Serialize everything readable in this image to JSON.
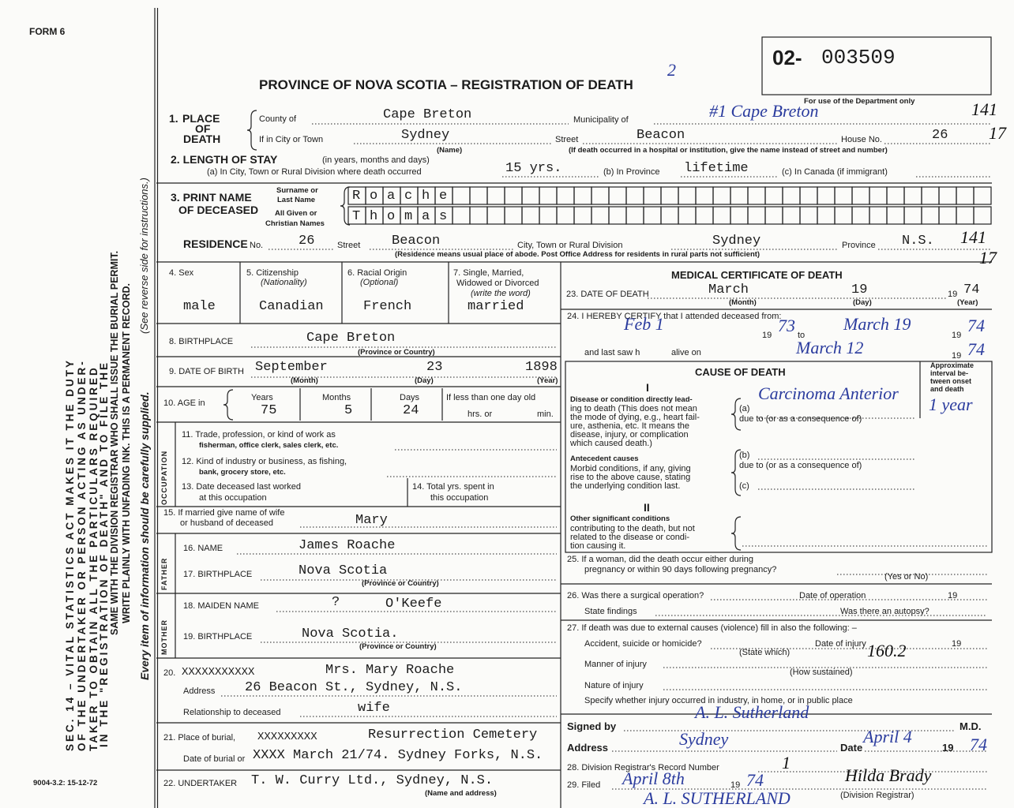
{
  "header": {
    "form": "FORM 6",
    "number_prefix": "02-",
    "number": "003509",
    "title": "PROVINCE OF NOVA SCOTIA – REGISTRATION OF DEATH",
    "title_mark": "2",
    "department_note": "For use of the Department only",
    "department_codes": [
      "141",
      "17",
      "141",
      "17"
    ]
  },
  "side": {
    "act_text": [
      "SEC. 14 – VITAL STATISTICS ACT MAKES IT THE DUTY",
      "OF THE UNDERTAKER OR PERSON ACTING AS UNDER-",
      "TAKER TO OBTAIN ALL THE PARTICULARS REQUIRED",
      "IN THE \"REGISTRATION OF DEATH\" AND TO FILE THE",
      "SAME WITH THE DIVISION REGISTRAR WHO SHALL ISSUE THE BURIAL PERMIT.",
      "WRITE PLAINLY WITH UNFADING INK. THIS IS A PERMANENT RECORD."
    ],
    "reverse_note": "(See reverse side for instructions.)",
    "care_note": "Every item of information should be carefully supplied.",
    "form_code": "9004-3.2: 15-12-72"
  },
  "place": {
    "number": "1.",
    "label": [
      "PLACE",
      "OF",
      "DEATH"
    ],
    "county_label": "County of",
    "county": "Cape Breton",
    "municipality_label": "Municipality of",
    "municipality": "#1 Cape Breton",
    "city_label": "If in City or Town",
    "city": "Sydney",
    "city_hint": "(Name)",
    "street_label": "Street",
    "street": "Beacon",
    "house_label": "House No.",
    "house": "26",
    "institution_note": "(If death occurred in a hospital or institution, give the name instead of street and number)"
  },
  "stay": {
    "label": "2. LENGTH OF STAY",
    "hint": "(in years, months and days)",
    "city_label": "(a) In City, Town or Rural Division where death occurred",
    "city": "15 yrs.",
    "province_label": "(b) In Province",
    "province": "lifetime",
    "canada_label": "(c) In Canada (if immigrant)"
  },
  "name": {
    "label": [
      "3. PRINT NAME",
      "OF DECEASED"
    ],
    "surname_label": [
      "Surname or",
      "Last Name"
    ],
    "given_label": [
      "All Given or",
      "Christian Names"
    ],
    "surname": "Roache",
    "given": "Thomas"
  },
  "residence": {
    "label": "RESIDENCE",
    "number_label": "No.",
    "number": "26",
    "street_label": "Street",
    "street": "Beacon",
    "city_label": "City, Town or Rural Division",
    "city": "Sydney",
    "province_label": "Province",
    "province": "N.S.",
    "note": "(Residence means usual place of abode. Post Office Address for residents in rural parts not sufficient)"
  },
  "personal": {
    "sex_label": "4. Sex",
    "sex": "male",
    "citizenship_label": [
      "5. Citizenship",
      "(Nationality)"
    ],
    "citizenship": "Canadian",
    "origin_label": [
      "6. Racial Origin",
      "(Optional)"
    ],
    "origin": "French",
    "marital_label": [
      "7. Single, Married,",
      "Widowed or Divorced",
      "(write the word)"
    ],
    "marital": "married"
  },
  "birth": {
    "place_label": "8. BIRTHPLACE",
    "place": "Cape Breton",
    "place_hint": "(Province or Country)",
    "date_label": "9. DATE OF BIRTH",
    "month": "September",
    "day": "23",
    "year": "1898",
    "month_hint": "(Month)",
    "day_hint": "(Day)",
    "year_hint": "(Year)"
  },
  "age": {
    "label": "10. AGE in",
    "years_label": "Years",
    "years": "75",
    "months_label": "Months",
    "months": "5",
    "days_label": "Days",
    "days": "24",
    "under_day_label": "If less than one day old",
    "hours_label": "hrs. or",
    "minutes_label": "min."
  },
  "occupation": {
    "section": "OCCUPATION",
    "trade_label": [
      "11. Trade, profession, or kind of work as",
      "fisherman, office clerk, sales clerk, etc."
    ],
    "industry_label": [
      "12. Kind of industry or business, as fishing,",
      "bank, grocery store, etc."
    ],
    "last_worked_label": [
      "13. Date deceased last worked",
      "at this occupation"
    ],
    "total_years_label": [
      "14. Total yrs. spent in",
      "this occupation"
    ]
  },
  "spouse": {
    "label": [
      "15. If married give name of wife",
      "or husband of deceased"
    ],
    "name": "Mary"
  },
  "father": {
    "section": "FATHER",
    "name_label": "16. NAME",
    "name": "James Roache",
    "birthplace_label": "17. BIRTHPLACE",
    "birthplace": "Nova Scotia",
    "birthplace_hint": "(Province or Country)"
  },
  "mother": {
    "section": "MOTHER",
    "maiden_label": "18. MAIDEN NAME",
    "maiden_query": "?",
    "maiden": "O'Keefe",
    "birthplace_label": "19. BIRTHPLACE",
    "birthplace": "Nova Scotia.",
    "birthplace_hint": "(Province or Country)"
  },
  "informant": {
    "number": "20.",
    "struck_label": "XXXXXXXXXXX",
    "name": "Mrs. Mary Roache",
    "address_label": "Address",
    "address": "26 Beacon St., Sydney, N.S.",
    "relationship_label": "Relationship to deceased",
    "relationship": "wife"
  },
  "burial": {
    "place_label": "21. Place of burial,",
    "struck_place": "XXXXXXXXX",
    "place": "Resurrection Cemetery",
    "date_label": "Date of burial or",
    "date": "XXXX March 21/74. Sydney Forks, N.S."
  },
  "undertaker": {
    "label": "22. UNDERTAKER",
    "name": "T. W. Curry Ltd., Sydney, N.S.",
    "hint": "(Name and address)"
  },
  "medical": {
    "title": "MEDICAL CERTIFICATE OF DEATH",
    "death_label": "23. DATE OF DEATH",
    "death_month": "March",
    "death_day": "19",
    "century": "19",
    "death_year": "74",
    "month_hint": "(Month)",
    "day_hint": "(Day)",
    "year_hint": "(Year)",
    "certify_label": "24. I HEREBY CERTIFY that I attended deceased from:",
    "from_date": "Feb 1",
    "from_century": "19",
    "from_year": "73",
    "to_label": "to",
    "to_date": "March 19",
    "to_century": "19",
    "to_year": "74",
    "last_seen_label": "and last saw h",
    "alive_label": "alive on",
    "last_seen_date": "March 12",
    "last_seen_century": "19",
    "last_seen_year": "74"
  },
  "cause": {
    "title": "CAUSE OF DEATH",
    "interval_label": [
      "Approximate",
      "interval be-",
      "tween onset",
      "and death"
    ],
    "part_one": "I",
    "direct_label": [
      "Disease or condition directly lead-",
      "ing to death (This does not mean",
      "the mode of dying, e.g., heart fail-",
      "ure, asthenia, etc. It means the",
      "disease, injury, or complication",
      "which caused death.)"
    ],
    "a_label": "(a)",
    "a": "Carcinoma Anterior",
    "a_interval": "1 year",
    "due_to_a": "due to (or as a consequence of)",
    "antecedent_label": [
      "Antecedent causes",
      "Morbid conditions, if any, giving",
      "rise to the above cause, stating",
      "the underlying condition last."
    ],
    "b_label": "(b)",
    "due_to_b": "due to (or as a consequence of)",
    "c_label": "(c)",
    "part_two": "II",
    "other_label": [
      "Other significant conditions",
      "contributing to the death, but not",
      "related to the disease or condi-",
      "tion causing it."
    ]
  },
  "pregnancy": {
    "label": [
      "25. If a woman, did the death occur either during",
      "pregnancy or within 90 days following pregnancy?"
    ],
    "hint": "(Yes or No)"
  },
  "operation": {
    "label": "26. Was there a surgical operation?",
    "date_label": "Date of operation",
    "century": "19",
    "findings_label": "State findings",
    "autopsy_label": "Was there an autopsy?"
  },
  "external": {
    "label": "27. If death was due to external causes (violence) fill in also the following: –",
    "kind_label": "Accident, suicide or homicide?",
    "kind_hint": "(State which)",
    "date_label": "Date of injury",
    "century": "19",
    "code": "160.2",
    "manner_label": "Manner of injury",
    "manner_hint": "(How sustained)",
    "nature_label": "Nature of injury",
    "place_label": "Specify whether injury occurred in industry, in home, or in public place"
  },
  "signature": {
    "signed_label": "Signed by",
    "signed": "A. L. Sutherland",
    "degree": "M.D.",
    "address_label": "Address",
    "address": "Sydney",
    "date_label": "Date",
    "date": "April 4",
    "century": "19",
    "year": "74"
  },
  "registrar": {
    "record_label": "28. Division Registrar's Record Number",
    "record": "1",
    "filed_label": "29. Filed",
    "filed": "April 8th",
    "century": "19",
    "year": "74",
    "signature": "Hilda Brady",
    "signature_hint": "(Division Registrar)",
    "certifier": "A. L. SUTHERLAND"
  }
}
